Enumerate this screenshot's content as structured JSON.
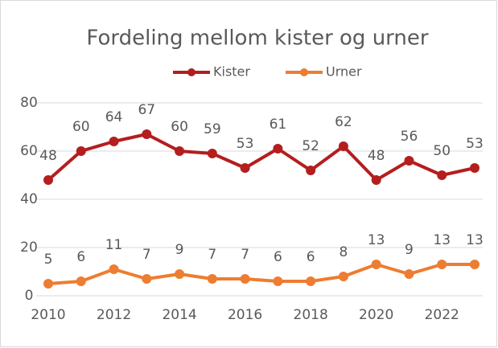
{
  "chart_data": {
    "type": "line",
    "title": "Fordeling mellom kister og urner",
    "x": [
      2010,
      2011,
      2012,
      2013,
      2014,
      2015,
      2016,
      2017,
      2018,
      2019,
      2020,
      2021,
      2022,
      2023
    ],
    "series": [
      {
        "name": "Kister",
        "color": "#b41e1e",
        "values": [
          48,
          60,
          64,
          67,
          60,
          59,
          53,
          61,
          52,
          62,
          48,
          56,
          50,
          53
        ]
      },
      {
        "name": "Urner",
        "color": "#ed7d31",
        "values": [
          5,
          6,
          11,
          7,
          9,
          7,
          7,
          6,
          6,
          8,
          13,
          9,
          13,
          13
        ]
      }
    ],
    "xlim": [
      2010,
      2023
    ],
    "xticks": [
      2010,
      2012,
      2014,
      2016,
      2018,
      2020,
      2022
    ],
    "ylim": [
      0,
      80
    ],
    "yticks": [
      0,
      20,
      40,
      60,
      80
    ],
    "grid": true,
    "legend": "top"
  }
}
